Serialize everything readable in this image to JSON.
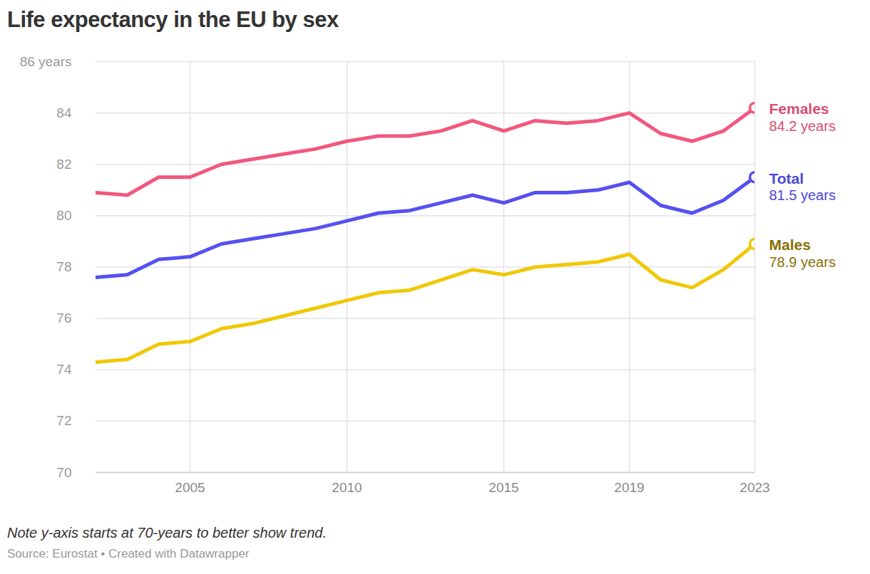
{
  "chart_data": {
    "type": "line",
    "title": "Life expectancy in the EU by sex",
    "note": "Note y-axis starts at 70-years to better show trend.",
    "source": "Source: Eurostat • Created with Datawrapper",
    "x": [
      2002,
      2003,
      2004,
      2005,
      2006,
      2007,
      2008,
      2009,
      2010,
      2011,
      2012,
      2013,
      2014,
      2015,
      2016,
      2017,
      2018,
      2019,
      2020,
      2021,
      2022,
      2023
    ],
    "series": [
      {
        "name": "Females",
        "color": "#f2577f",
        "marker": "circle",
        "end_label": "84.2 years",
        "values": [
          80.9,
          80.8,
          81.5,
          81.5,
          82.0,
          82.2,
          82.4,
          82.6,
          82.9,
          83.1,
          83.1,
          83.3,
          83.7,
          83.3,
          83.7,
          83.6,
          83.7,
          84.0,
          83.2,
          82.9,
          83.3,
          84.2
        ]
      },
      {
        "name": "Total",
        "color": "#5551f0",
        "marker": "circle",
        "end_label": "81.5 years",
        "values": [
          77.6,
          77.7,
          78.3,
          78.4,
          78.9,
          79.1,
          79.3,
          79.5,
          79.8,
          80.1,
          80.2,
          80.5,
          80.8,
          80.5,
          80.9,
          80.9,
          81.0,
          81.3,
          80.4,
          80.1,
          80.6,
          81.5
        ]
      },
      {
        "name": "Males",
        "color": "#f0c808",
        "marker": "circle",
        "end_label": "78.9 years",
        "values": [
          74.3,
          74.4,
          75.0,
          75.1,
          75.6,
          75.8,
          76.1,
          76.4,
          76.7,
          77.0,
          77.1,
          77.5,
          77.9,
          77.7,
          78.0,
          78.1,
          78.2,
          78.5,
          77.5,
          77.2,
          77.9,
          78.9
        ]
      }
    ],
    "xlim": [
      2002,
      2023
    ],
    "xticks": [
      2005,
      2010,
      2015,
      2019,
      2023
    ],
    "ylim": [
      70,
      86
    ],
    "yticks": [
      70,
      72,
      74,
      76,
      78,
      80,
      82,
      84,
      {
        "value": 86,
        "label": "86 years"
      }
    ],
    "grid": true
  }
}
